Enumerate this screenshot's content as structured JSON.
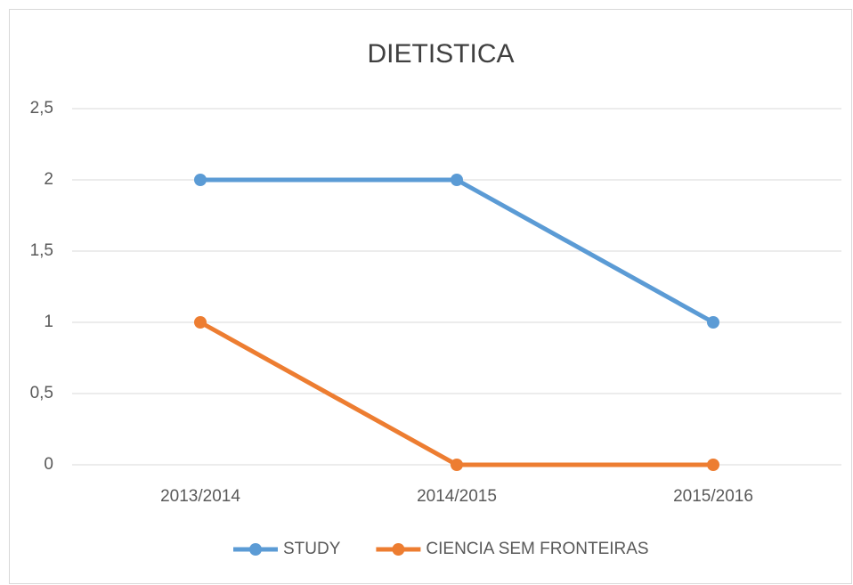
{
  "chart_data": {
    "type": "line",
    "title": "DIETISTICA",
    "categories": [
      "2013/2014",
      "2014/2015",
      "2015/2016"
    ],
    "series": [
      {
        "name": "STUDY",
        "color": "#5b9bd5",
        "values": [
          2,
          2,
          1
        ]
      },
      {
        "name": "CIENCIA SEM FRONTEIRAS",
        "color": "#ed7d31",
        "values": [
          1,
          0,
          0
        ]
      }
    ],
    "ylim": [
      0,
      2.5
    ],
    "yticks": [
      0,
      {
        "value": 0.5,
        "label": "0,5"
      },
      1,
      {
        "value": 1.5,
        "label": "1,5"
      },
      2,
      {
        "value": 2.5,
        "label": "2,5"
      }
    ],
    "grid": true,
    "legend": "bottom"
  }
}
